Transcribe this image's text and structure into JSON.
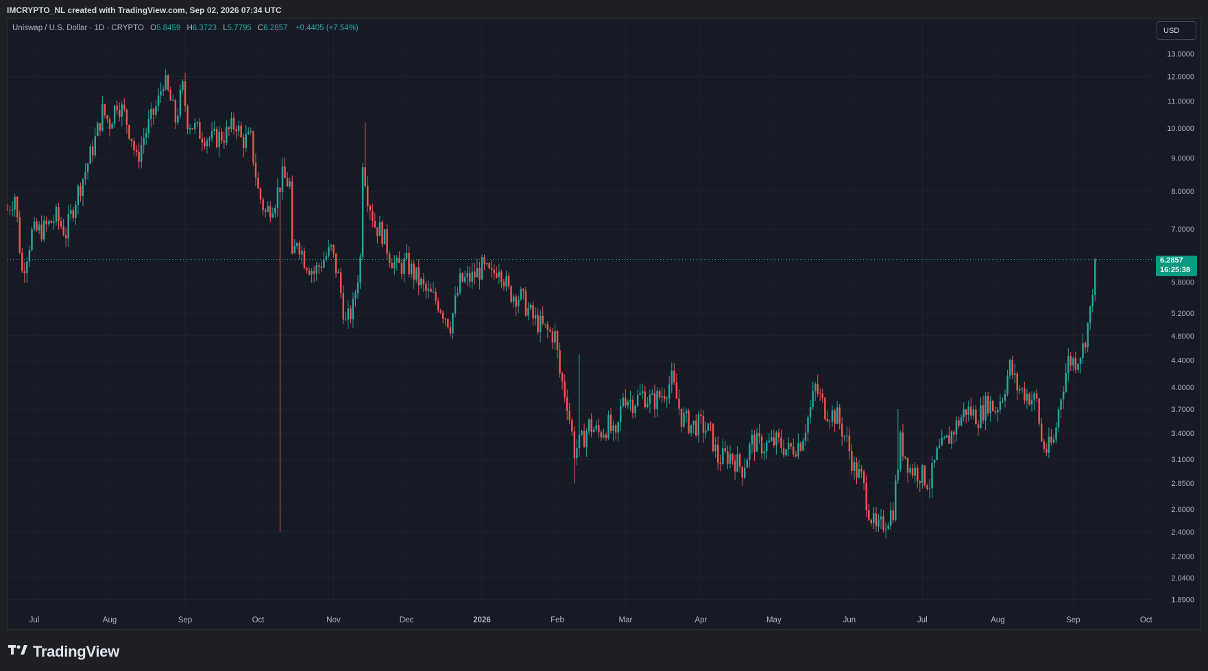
{
  "header": {
    "credit": "IMCRYPTO_NL created with TradingView.com, Sep 02, 2026 07:34 UTC"
  },
  "legend": {
    "symbol": "Uniswap / U.S. Dollar · 1D · CRYPTO",
    "open_label": "O",
    "open": "5.8459",
    "high_label": "H",
    "high": "6.3723",
    "low_label": "L",
    "low": "5.7795",
    "close_label": "C",
    "close": "6.2857",
    "change": "+0.4405 (+7.54%)"
  },
  "currency_button": "USD",
  "price_tag": {
    "price": "6.2857",
    "countdown": "16:25:38"
  },
  "brand": "TradingView",
  "colors": {
    "up": "#26a69a",
    "down": "#ef5350",
    "background": "#161a25",
    "grid": "#1f2330",
    "price_tag": "#089981"
  },
  "chart_data": {
    "type": "candlestick",
    "scale": "log",
    "ylim": [
      1.82,
      13.6
    ],
    "y_ticks": [
      "13.0000",
      "12.0000",
      "11.0000",
      "10.0000",
      "9.0000",
      "8.0000",
      "7.0000",
      "5.8000",
      "5.2000",
      "4.8000",
      "4.4000",
      "4.0000",
      "3.7000",
      "3.4000",
      "3.1000",
      "2.8500",
      "2.6000",
      "2.4000",
      "2.2000",
      "2.0400",
      "1.8900"
    ],
    "x_ticks": [
      "Jul",
      "Aug",
      "Sep",
      "Oct",
      "Nov",
      "Dec",
      "2026",
      "Feb",
      "Mar",
      "Apr",
      "May",
      "Jun",
      "Jul",
      "Aug",
      "Sep",
      "Oct"
    ],
    "date_range": [
      "2025-06-20",
      "2026-10-05"
    ],
    "last_close": 6.2857,
    "path": [
      [
        "2025-06-20",
        7.5
      ],
      [
        "2025-06-23",
        7.9
      ],
      [
        "2025-06-26",
        6.0
      ],
      [
        "2025-06-30",
        6.9
      ],
      [
        "2025-07-05",
        7.0
      ],
      [
        "2025-07-10",
        7.3
      ],
      [
        "2025-07-14",
        6.9
      ],
      [
        "2025-07-18",
        7.8
      ],
      [
        "2025-07-22",
        8.6
      ],
      [
        "2025-07-26",
        9.6
      ],
      [
        "2025-07-29",
        10.6
      ],
      [
        "2025-08-01",
        10.2
      ],
      [
        "2025-08-04",
        11.0
      ],
      [
        "2025-08-07",
        10.5
      ],
      [
        "2025-08-10",
        9.7
      ],
      [
        "2025-08-12",
        8.9
      ],
      [
        "2025-08-15",
        9.7
      ],
      [
        "2025-08-18",
        10.3
      ],
      [
        "2025-08-21",
        11.0
      ],
      [
        "2025-08-23",
        11.9
      ],
      [
        "2025-08-26",
        11.0
      ],
      [
        "2025-08-28",
        10.3
      ],
      [
        "2025-08-31",
        11.5
      ],
      [
        "2025-09-02",
        10.3
      ],
      [
        "2025-09-06",
        9.9
      ],
      [
        "2025-09-12",
        9.6
      ],
      [
        "2025-09-18",
        9.8
      ],
      [
        "2025-09-22",
        10.2
      ],
      [
        "2025-09-24",
        9.6
      ],
      [
        "2025-09-28",
        9.6
      ],
      [
        "2025-10-01",
        8.0
      ],
      [
        "2025-10-04",
        7.4
      ],
      [
        "2025-10-08",
        7.8
      ],
      [
        "2025-10-11",
        8.4
      ],
      [
        "2025-10-14",
        8.2
      ],
      [
        "2025-10-15",
        6.2
      ],
      [
        "2025-10-17",
        6.8
      ],
      [
        "2025-10-20",
        6.3
      ],
      [
        "2025-10-24",
        6.0
      ],
      [
        "2025-10-28",
        6.3
      ],
      [
        "2025-10-31",
        6.5
      ],
      [
        "2025-11-03",
        5.9
      ],
      [
        "2025-11-06",
        5.0
      ],
      [
        "2025-11-09",
        5.3
      ],
      [
        "2025-11-12",
        6.3
      ],
      [
        "2025-11-13",
        9.0
      ],
      [
        "2025-11-15",
        7.9
      ],
      [
        "2025-11-18",
        7.1
      ],
      [
        "2025-11-21",
        6.9
      ],
      [
        "2025-11-24",
        6.4
      ],
      [
        "2025-11-27",
        6.1
      ],
      [
        "2025-12-01",
        6.2
      ],
      [
        "2025-12-05",
        5.9
      ],
      [
        "2025-12-09",
        5.6
      ],
      [
        "2025-12-14",
        5.4
      ],
      [
        "2025-12-19",
        5.0
      ],
      [
        "2025-12-23",
        5.8
      ],
      [
        "2025-12-28",
        5.9
      ],
      [
        "2026-01-01",
        6.1
      ],
      [
        "2026-01-05",
        5.9
      ],
      [
        "2026-01-08",
        6.2
      ],
      [
        "2026-01-12",
        5.6
      ],
      [
        "2026-01-17",
        5.5
      ],
      [
        "2026-01-22",
        5.1
      ],
      [
        "2026-01-27",
        4.9
      ],
      [
        "2026-01-31",
        4.8
      ],
      [
        "2026-02-02",
        4.2
      ],
      [
        "2026-02-05",
        3.8
      ],
      [
        "2026-02-08",
        3.2
      ],
      [
        "2026-02-11",
        3.3
      ],
      [
        "2026-02-14",
        3.5
      ],
      [
        "2026-02-18",
        3.4
      ],
      [
        "2026-02-22",
        3.5
      ],
      [
        "2026-02-25",
        3.3
      ],
      [
        "2026-02-28",
        3.9
      ],
      [
        "2026-03-04",
        3.8
      ],
      [
        "2026-03-08",
        3.9
      ],
      [
        "2026-03-12",
        3.8
      ],
      [
        "2026-03-16",
        3.9
      ],
      [
        "2026-03-20",
        4.1
      ],
      [
        "2026-03-24",
        3.6
      ],
      [
        "2026-03-28",
        3.5
      ],
      [
        "2026-04-01",
        3.5
      ],
      [
        "2026-04-05",
        3.4
      ],
      [
        "2026-04-08",
        3.1
      ],
      [
        "2026-04-13",
        3.15
      ],
      [
        "2026-04-18",
        3.0
      ],
      [
        "2026-04-22",
        3.3
      ],
      [
        "2026-04-27",
        3.25
      ],
      [
        "2026-05-02",
        3.3
      ],
      [
        "2026-05-07",
        3.2
      ],
      [
        "2026-05-12",
        3.3
      ],
      [
        "2026-05-16",
        3.7
      ],
      [
        "2026-05-18",
        4.0
      ],
      [
        "2026-05-22",
        3.7
      ],
      [
        "2026-05-27",
        3.6
      ],
      [
        "2026-05-31",
        3.3
      ],
      [
        "2026-06-03",
        3.0
      ],
      [
        "2026-06-06",
        2.9
      ],
      [
        "2026-06-09",
        2.6
      ],
      [
        "2026-06-12",
        2.4
      ],
      [
        "2026-06-16",
        2.5
      ],
      [
        "2026-06-19",
        2.6
      ],
      [
        "2026-06-22",
        3.3
      ],
      [
        "2026-06-26",
        3.0
      ],
      [
        "2026-06-30",
        2.95
      ],
      [
        "2026-07-04",
        2.85
      ],
      [
        "2026-07-07",
        3.15
      ],
      [
        "2026-07-11",
        3.3
      ],
      [
        "2026-07-15",
        3.5
      ],
      [
        "2026-07-19",
        3.7
      ],
      [
        "2026-07-24",
        3.6
      ],
      [
        "2026-07-28",
        3.8
      ],
      [
        "2026-07-31",
        3.7
      ],
      [
        "2026-08-03",
        3.9
      ],
      [
        "2026-08-06",
        4.3
      ],
      [
        "2026-08-09",
        4.0
      ],
      [
        "2026-08-13",
        3.9
      ],
      [
        "2026-08-17",
        3.8
      ],
      [
        "2026-08-19",
        3.3
      ],
      [
        "2026-08-21",
        3.2
      ],
      [
        "2026-08-24",
        3.3
      ],
      [
        "2026-08-27",
        3.9
      ],
      [
        "2026-08-30",
        4.4
      ],
      [
        "2026-09-02",
        4.4
      ],
      [
        "2026-09-05",
        4.6
      ],
      [
        "2026-09-08",
        5.2
      ],
      [
        "2026-09-10",
        6.2857
      ]
    ]
  }
}
